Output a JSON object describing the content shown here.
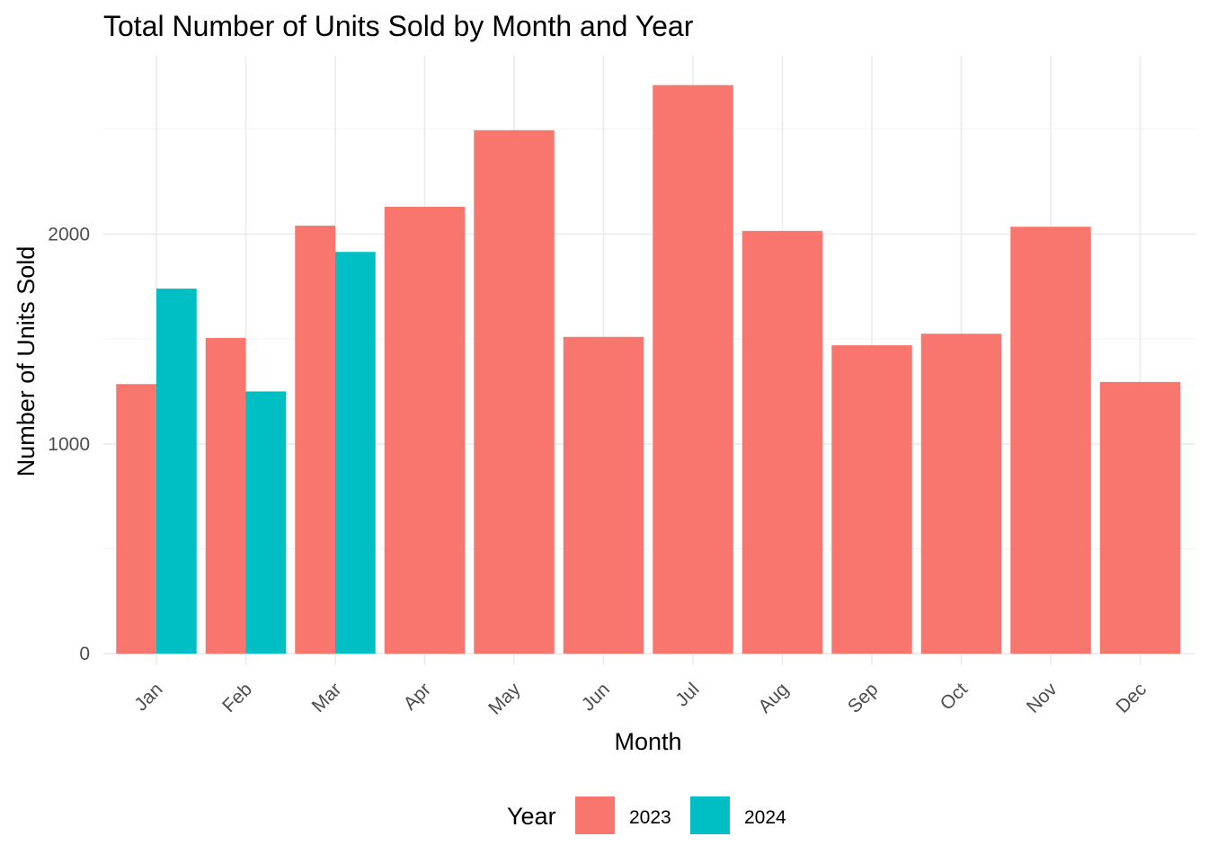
{
  "chart_data": {
    "type": "bar",
    "title": "Total Number of Units Sold by Month and Year",
    "xlabel": "Month",
    "ylabel": "Number of Units Sold",
    "categories": [
      "Jan",
      "Feb",
      "Mar",
      "Apr",
      "May",
      "Jun",
      "Jul",
      "Aug",
      "Sep",
      "Oct",
      "Nov",
      "Dec"
    ],
    "y_ticks": [
      "0",
      "1000",
      "2000"
    ],
    "ylim": [
      -55,
      2850
    ],
    "grid": true,
    "legend": {
      "title": "Year",
      "position": "bottom",
      "entries": [
        "2023",
        "2024"
      ]
    },
    "series": [
      {
        "name": "2023",
        "color": "#F8766D",
        "values": [
          1285,
          1505,
          2040,
          2130,
          2495,
          1510,
          2710,
          2015,
          1470,
          1525,
          2035,
          1295
        ]
      },
      {
        "name": "2024",
        "color": "#00BFC4",
        "values": [
          1740,
          1250,
          1915,
          null,
          null,
          null,
          null,
          null,
          null,
          null,
          null,
          null
        ]
      }
    ],
    "layout_mode": "dodge-preserve-total"
  }
}
